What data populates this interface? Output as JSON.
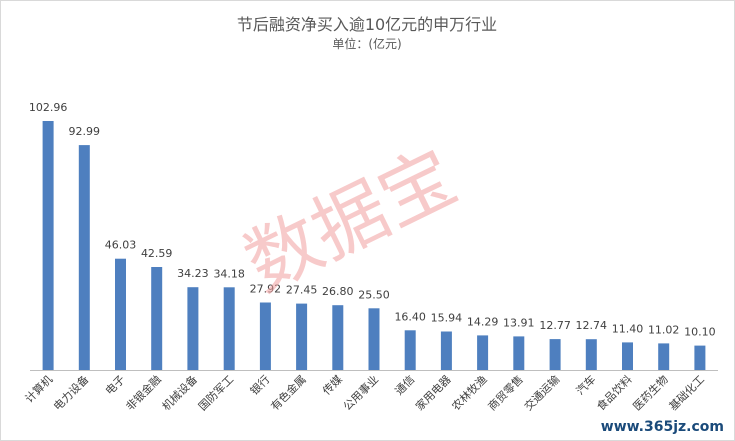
{
  "chart_data": {
    "type": "bar",
    "title": "节后融资净买入逾10亿元的申万行业",
    "subtitle": "单位：(亿元)",
    "categories": [
      "计算机",
      "电力设备",
      "电子",
      "非银金融",
      "机械设备",
      "国防军工",
      "银行",
      "有色金属",
      "传媒",
      "公用事业",
      "通信",
      "家用电器",
      "农林牧渔",
      "商贸零售",
      "交通运输",
      "汽车",
      "食品饮料",
      "医药生物",
      "基础化工"
    ],
    "values": [
      102.96,
      92.99,
      46.03,
      42.59,
      34.23,
      34.18,
      27.92,
      27.45,
      26.8,
      25.5,
      16.4,
      15.94,
      14.29,
      13.91,
      12.77,
      12.74,
      11.4,
      11.02,
      10.1
    ],
    "value_labels": [
      "102.96",
      "92.99",
      "46.03",
      "42.59",
      "34.23",
      "34.18",
      "27.92",
      "27.45",
      "26.80",
      "25.50",
      "16.40",
      "15.94",
      "14.29",
      "13.91",
      "12.77",
      "12.74",
      "11.40",
      "11.02",
      "10.10"
    ],
    "ylim": [
      0,
      110
    ],
    "bar_color": "#4e7fbf",
    "grid": false,
    "legend": "none"
  },
  "watermark_text": "数据宝",
  "site_watermark": "www.365jz.com"
}
